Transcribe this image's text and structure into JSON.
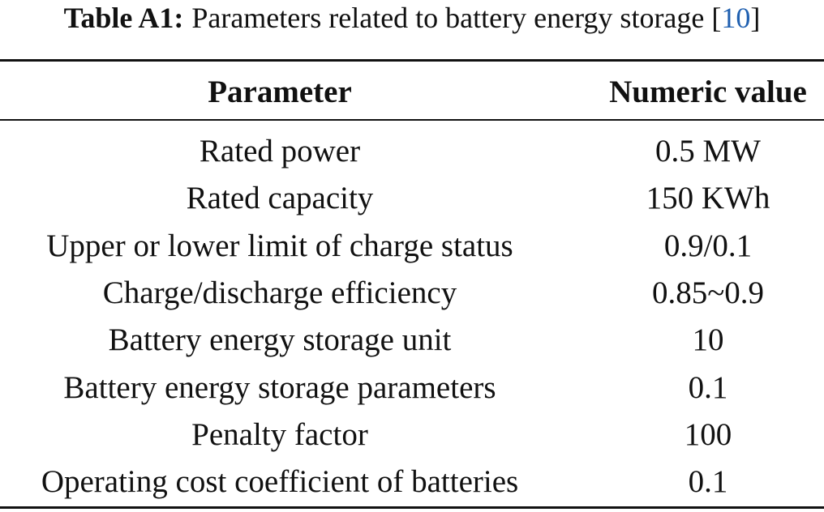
{
  "caption": {
    "label": "Table A1:",
    "text": "Parameters related to battery energy storage",
    "cite": {
      "open": "[",
      "number": "10",
      "close": "]"
    }
  },
  "table": {
    "header": [
      "Parameter",
      "Numeric value"
    ],
    "rows": [
      [
        "Rated power",
        "0.5 MW"
      ],
      [
        "Rated capacity",
        "150 KWh"
      ],
      [
        "Upper or lower limit of charge status",
        "0.9/0.1"
      ],
      [
        "Charge/discharge efficiency",
        "0.85~0.9"
      ],
      [
        "Battery energy storage unit",
        "10"
      ],
      [
        "Battery energy storage parameters",
        "0.1"
      ],
      [
        "Penalty factor",
        "100"
      ],
      [
        "Operating cost coefficient of batteries",
        "0.1"
      ]
    ]
  }
}
